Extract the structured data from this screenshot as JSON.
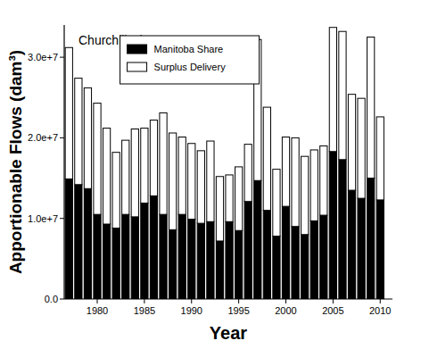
{
  "chart_data": {
    "type": "bar",
    "stacked": true,
    "x_label": "Year",
    "y_label": "Apportionable Flows (dam³)",
    "annotations": [
      {
        "text": "Churchill River"
      }
    ],
    "legend": "upper center",
    "x": [
      1977,
      1978,
      1979,
      1980,
      1981,
      1982,
      1983,
      1984,
      1985,
      1986,
      1987,
      1988,
      1989,
      1990,
      1991,
      1992,
      1993,
      1994,
      1995,
      1996,
      1997,
      1998,
      1999,
      2000,
      2001,
      2002,
      2003,
      2004,
      2005,
      2006,
      2007,
      2008,
      2009,
      2010
    ],
    "series": [
      {
        "name": "Manitoba Share",
        "color": "#000000",
        "values": [
          14900000,
          14200000,
          13700000,
          10500000,
          9300000,
          8800000,
          10500000,
          10200000,
          11900000,
          12800000,
          10500000,
          8600000,
          10500000,
          9900000,
          9400000,
          9600000,
          7200000,
          9600000,
          8500000,
          12100000,
          14700000,
          11000000,
          7800000,
          11500000,
          9000000,
          8000000,
          9700000,
          10400000,
          18300000,
          17300000,
          13500000,
          12500000,
          15000000,
          12300000
        ]
      },
      {
        "name": "Surplus Delivery",
        "color": "#ffffff",
        "values": [
          16300000,
          13200000,
          12500000,
          13800000,
          11900000,
          9400000,
          9200000,
          10900000,
          9300000,
          9400000,
          12600000,
          12000000,
          9600000,
          9400000,
          9000000,
          10000000,
          8000000,
          5800000,
          7900000,
          7100000,
          17500000,
          12800000,
          8300000,
          8600000,
          11000000,
          9700000,
          8800000,
          8600000,
          15400000,
          15900000,
          11900000,
          12400000,
          17500000,
          10300000
        ]
      }
    ],
    "xlim": [
      1976.5,
      2011.3
    ],
    "xticks": [
      1980,
      1985,
      1990,
      1995,
      2000,
      2005,
      2010
    ],
    "ylim": [
      0,
      34000000
    ],
    "yticks": [
      {
        "value": 0,
        "label": "0.0"
      },
      {
        "value": 10000000,
        "label": "1.0e+7"
      },
      {
        "value": 20000000,
        "label": "2.0e+7"
      },
      {
        "value": 30000000,
        "label": "3.0e+7"
      }
    ],
    "grid": false
  }
}
